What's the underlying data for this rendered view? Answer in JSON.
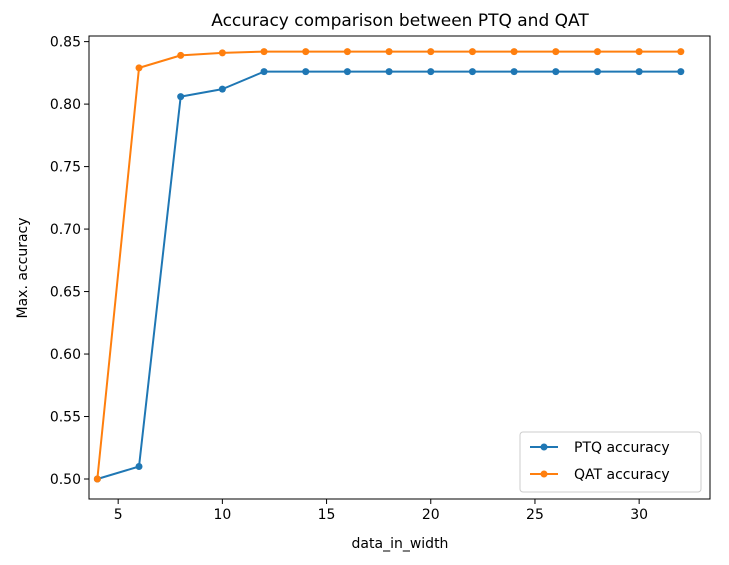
{
  "chart_data": {
    "type": "line",
    "title": "Accuracy comparison between PTQ and QAT",
    "xlabel": "data_in_width",
    "ylabel": "Max. accuracy",
    "xlim": [
      3.6,
      33.4
    ],
    "ylim": [
      0.484,
      0.8545
    ],
    "x_ticks": [
      5,
      10,
      15,
      20,
      25,
      30
    ],
    "y_ticks": [
      0.5,
      0.55,
      0.6,
      0.65,
      0.7,
      0.75,
      0.8,
      0.85
    ],
    "x_tick_labels": [
      "5",
      "10",
      "15",
      "20",
      "25",
      "30"
    ],
    "y_tick_labels": [
      "0.50",
      "0.55",
      "0.60",
      "0.65",
      "0.70",
      "0.75",
      "0.80",
      "0.85"
    ],
    "grid": false,
    "legend_position": "lower-right",
    "x": [
      4,
      6,
      8,
      10,
      12,
      14,
      16,
      18,
      20,
      22,
      24,
      26,
      28,
      30,
      32
    ],
    "series": [
      {
        "name": "PTQ accuracy",
        "color": "#1f77b4",
        "marker": "circle",
        "values": [
          0.5,
          0.51,
          0.806,
          0.812,
          0.826,
          0.826,
          0.826,
          0.826,
          0.826,
          0.826,
          0.826,
          0.826,
          0.826,
          0.826,
          0.826
        ]
      },
      {
        "name": "QAT accuracy",
        "color": "#ff7f0e",
        "marker": "circle",
        "values": [
          0.5,
          0.829,
          0.839,
          0.841,
          0.842,
          0.842,
          0.842,
          0.842,
          0.842,
          0.842,
          0.842,
          0.842,
          0.842,
          0.842,
          0.842
        ]
      }
    ]
  }
}
